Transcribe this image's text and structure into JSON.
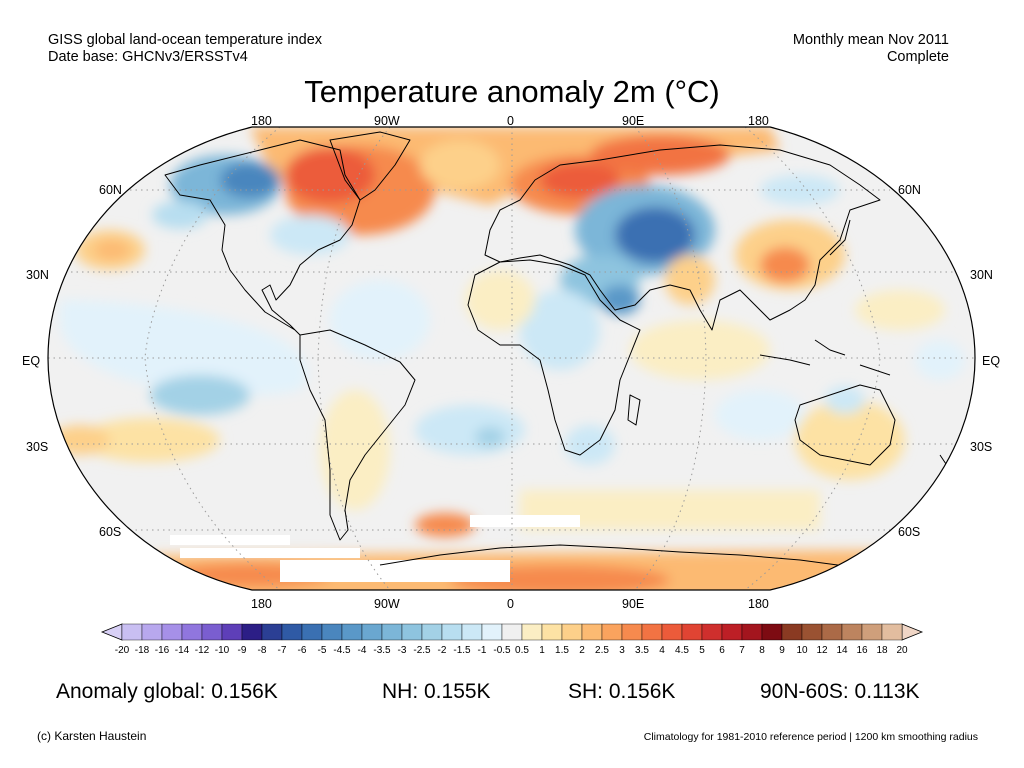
{
  "header": {
    "left_line1": "GISS global land-ocean temperature index",
    "left_line2": "Date base: GHCNv3/ERSSTv4",
    "right_line1": "Monthly mean Nov 2011",
    "right_line2": "Complete"
  },
  "title": "Temperature anomaly 2m (°C)",
  "map": {
    "projection": "robinson",
    "lon_labels_top": [
      "180",
      "90W",
      "0",
      "90E",
      "180"
    ],
    "lon_labels_bottom": [
      "180",
      "90W",
      "0",
      "90E",
      "180"
    ],
    "lat_labels_left": [
      "60N",
      "30N",
      "EQ",
      "30S",
      "60S"
    ],
    "lat_labels_right": [
      "60N",
      "30N",
      "EQ",
      "30S",
      "60S"
    ]
  },
  "colorbar": {
    "ticks": [
      "-20",
      "-18",
      "-16",
      "-14",
      "-12",
      "-10",
      "-9",
      "-8",
      "-7",
      "-6",
      "-5",
      "-4.5",
      "-4",
      "-3.5",
      "-3",
      "-2.5",
      "-2",
      "-1.5",
      "-1",
      "-0.5",
      "0.5",
      "1",
      "1.5",
      "2",
      "2.5",
      "3",
      "3.5",
      "4",
      "4.5",
      "5",
      "6",
      "7",
      "8",
      "9",
      "10",
      "12",
      "14",
      "16",
      "18",
      "20"
    ],
    "colors": [
      "#c9bff2",
      "#b8a8ee",
      "#a690e8",
      "#9076de",
      "#7a5ed0",
      "#5e3fb8",
      "#2c1e86",
      "#2b3f94",
      "#2f5aa5",
      "#3a70b2",
      "#4a86be",
      "#5a98c8",
      "#6aa7d0",
      "#7cb6d8",
      "#8ec4df",
      "#a3d1e6",
      "#b8def0",
      "#cce8f6",
      "#e2f2fb",
      "#f0f0f0",
      "#fbeec4",
      "#fde2a4",
      "#fdd08a",
      "#fcba72",
      "#faa35e",
      "#f68a4e",
      "#f27343",
      "#ec5b3a",
      "#e04433",
      "#cf2f2d",
      "#bd1f26",
      "#a3151e",
      "#7d0b12",
      "#8a3a22",
      "#9a5232",
      "#ab6a47",
      "#bd845f",
      "#cf9f7b",
      "#e2bd9f"
    ],
    "end_left": "#d8d0f6",
    "end_right": "#f0d6c6"
  },
  "stats": {
    "global": "Anomaly global: 0.156K",
    "nh": "NH: 0.155K",
    "sh": "SH: 0.156K",
    "polar": "90N-60S: 0.113K"
  },
  "footer": {
    "left": "(c) Karsten Haustein",
    "right": "Climatology for 1981-2010 reference period | 1200 km smoothing radius"
  }
}
